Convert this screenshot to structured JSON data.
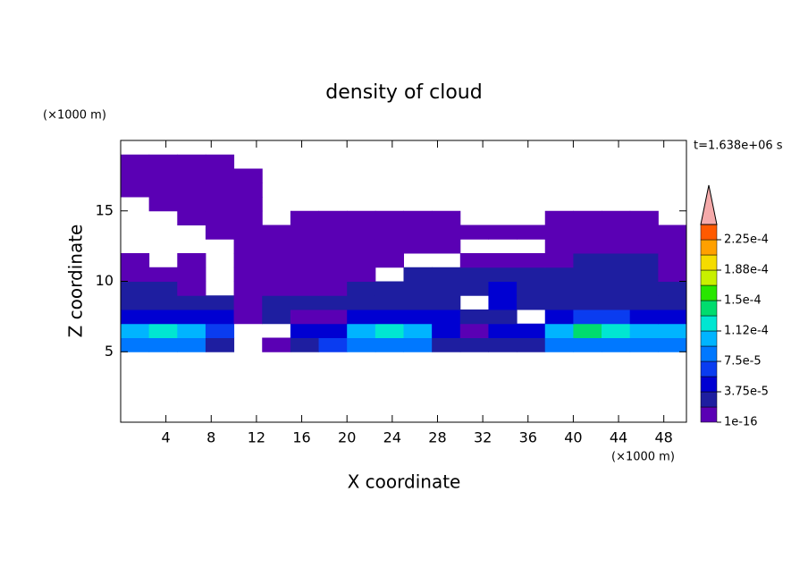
{
  "chart_data": {
    "type": "contour",
    "title": "density of cloud",
    "xlabel": "X coordinate",
    "ylabel": "Z coordinate",
    "xunit": "(×1000 m)",
    "yunit": "(×1000 m)",
    "time_label": "t=1.638e+06 s",
    "xlim": [
      0,
      50
    ],
    "ylim": [
      0,
      20
    ],
    "xticks": [
      4,
      8,
      12,
      16,
      20,
      24,
      28,
      32,
      36,
      40,
      44,
      48
    ],
    "yticks": [
      5,
      10,
      15
    ],
    "x": [
      1.25,
      3.75,
      6.25,
      8.75,
      11.25,
      13.75,
      16.25,
      18.75,
      21.25,
      23.75,
      26.25,
      28.75,
      31.25,
      33.75,
      36.25,
      38.75,
      41.25,
      43.75,
      46.25,
      48.75
    ],
    "y": [
      5.5,
      6.5,
      7.5,
      8.5,
      9.5,
      10.5,
      11.5,
      12.5,
      13.5,
      14.5,
      15.5,
      16.5,
      17.5,
      18.5
    ],
    "z": [
      [
        8e-05,
        8e-05,
        8e-05,
        2.5e-05,
        null,
        5e-06,
        2.5e-05,
        6.5e-05,
        8e-05,
        8e-05,
        8e-05,
        2.5e-05,
        2.5e-05,
        2.5e-05,
        2.5e-05,
        8e-05,
        8e-05,
        8e-05,
        8e-05,
        8e-05
      ],
      [
        0.0001,
        0.00012,
        0.0001,
        6.5e-05,
        null,
        null,
        4.5e-05,
        4.5e-05,
        0.0001,
        0.00012,
        0.0001,
        4.5e-05,
        5e-06,
        4.5e-05,
        4.5e-05,
        0.0001,
        0.00014,
        0.00012,
        0.0001,
        0.0001
      ],
      [
        4.5e-05,
        4.5e-05,
        4.5e-05,
        4.5e-05,
        5e-06,
        2.5e-05,
        5e-06,
        5e-06,
        4.5e-05,
        4.5e-05,
        4.5e-05,
        4.5e-05,
        2.5e-05,
        2.5e-05,
        null,
        4.5e-05,
        6.5e-05,
        6.5e-05,
        4.5e-05,
        4.5e-05
      ],
      [
        2.5e-05,
        2.5e-05,
        2.5e-05,
        2.5e-05,
        5e-06,
        2.5e-05,
        2.5e-05,
        2.5e-05,
        2.5e-05,
        2.5e-05,
        2.5e-05,
        2.5e-05,
        null,
        4.5e-05,
        2.5e-05,
        2.5e-05,
        2.5e-05,
        2.5e-05,
        2.5e-05,
        2.5e-05
      ],
      [
        2.5e-05,
        2.5e-05,
        5e-06,
        null,
        5e-06,
        5e-06,
        5e-06,
        5e-06,
        2.5e-05,
        2.5e-05,
        2.5e-05,
        2.5e-05,
        2.5e-05,
        4.5e-05,
        2.5e-05,
        2.5e-05,
        2.5e-05,
        2.5e-05,
        2.5e-05,
        2.5e-05
      ],
      [
        5e-06,
        5e-06,
        5e-06,
        null,
        5e-06,
        5e-06,
        5e-06,
        5e-06,
        5e-06,
        null,
        2.5e-05,
        2.5e-05,
        2.5e-05,
        2.5e-05,
        2.5e-05,
        2.5e-05,
        2.5e-05,
        2.5e-05,
        2.5e-05,
        5e-06
      ],
      [
        5e-06,
        null,
        5e-06,
        null,
        5e-06,
        5e-06,
        5e-06,
        5e-06,
        5e-06,
        5e-06,
        null,
        null,
        5e-06,
        5e-06,
        5e-06,
        5e-06,
        2.5e-05,
        2.5e-05,
        2.5e-05,
        5e-06
      ],
      [
        null,
        null,
        null,
        null,
        5e-06,
        5e-06,
        5e-06,
        5e-06,
        5e-06,
        5e-06,
        5e-06,
        5e-06,
        null,
        null,
        null,
        5e-06,
        5e-06,
        5e-06,
        5e-06,
        5e-06
      ],
      [
        null,
        null,
        null,
        5e-06,
        5e-06,
        5e-06,
        5e-06,
        5e-06,
        5e-06,
        5e-06,
        5e-06,
        5e-06,
        5e-06,
        5e-06,
        5e-06,
        5e-06,
        5e-06,
        5e-06,
        5e-06,
        5e-06
      ],
      [
        null,
        null,
        5e-06,
        5e-06,
        5e-06,
        null,
        5e-06,
        5e-06,
        5e-06,
        5e-06,
        5e-06,
        5e-06,
        null,
        null,
        null,
        5e-06,
        5e-06,
        5e-06,
        5e-06,
        null
      ],
      [
        null,
        5e-06,
        5e-06,
        5e-06,
        5e-06,
        null,
        null,
        null,
        null,
        null,
        null,
        null,
        null,
        null,
        null,
        null,
        null,
        null,
        null,
        null
      ],
      [
        5e-06,
        5e-06,
        5e-06,
        5e-06,
        5e-06,
        null,
        null,
        null,
        null,
        null,
        null,
        null,
        null,
        null,
        null,
        null,
        null,
        null,
        null,
        null
      ],
      [
        5e-06,
        5e-06,
        5e-06,
        5e-06,
        5e-06,
        null,
        null,
        null,
        null,
        null,
        null,
        null,
        null,
        null,
        null,
        null,
        null,
        null,
        null,
        null
      ],
      [
        5e-06,
        5e-06,
        5e-06,
        5e-06,
        null,
        null,
        null,
        null,
        null,
        null,
        null,
        null,
        null,
        null,
        null,
        null,
        null,
        null,
        null,
        null
      ]
    ],
    "levels": [
      1e-16,
      1.875e-05,
      3.75e-05,
      5.625e-05,
      7.5e-05,
      9.375e-05,
      0.0001125,
      0.00013125,
      0.00015,
      0.00016875,
      0.0001875,
      0.00020625,
      0.000225,
      0.00024375
    ],
    "colors": [
      "#5a00b4",
      "#1e1ea0",
      "#0000d2",
      "#0a3cf0",
      "#0078ff",
      "#00b4ff",
      "#00e6d2",
      "#00dc6e",
      "#28e600",
      "#c8f000",
      "#f5dc00",
      "#ffa000",
      "#ff5a00"
    ],
    "overflow_color": "#f5aaaa",
    "colorbar_ticks": [
      {
        "value": 1e-16,
        "label": "1e-16"
      },
      {
        "value": 3.75e-05,
        "label": "3.75e-5"
      },
      {
        "value": 7.5e-05,
        "label": "7.5e-5"
      },
      {
        "value": 0.0001125,
        "label": "1.12e-4"
      },
      {
        "value": 0.00015,
        "label": "1.5e-4"
      },
      {
        "value": 0.0001875,
        "label": "1.88e-4"
      },
      {
        "value": 0.000225,
        "label": "2.25e-4"
      }
    ]
  }
}
